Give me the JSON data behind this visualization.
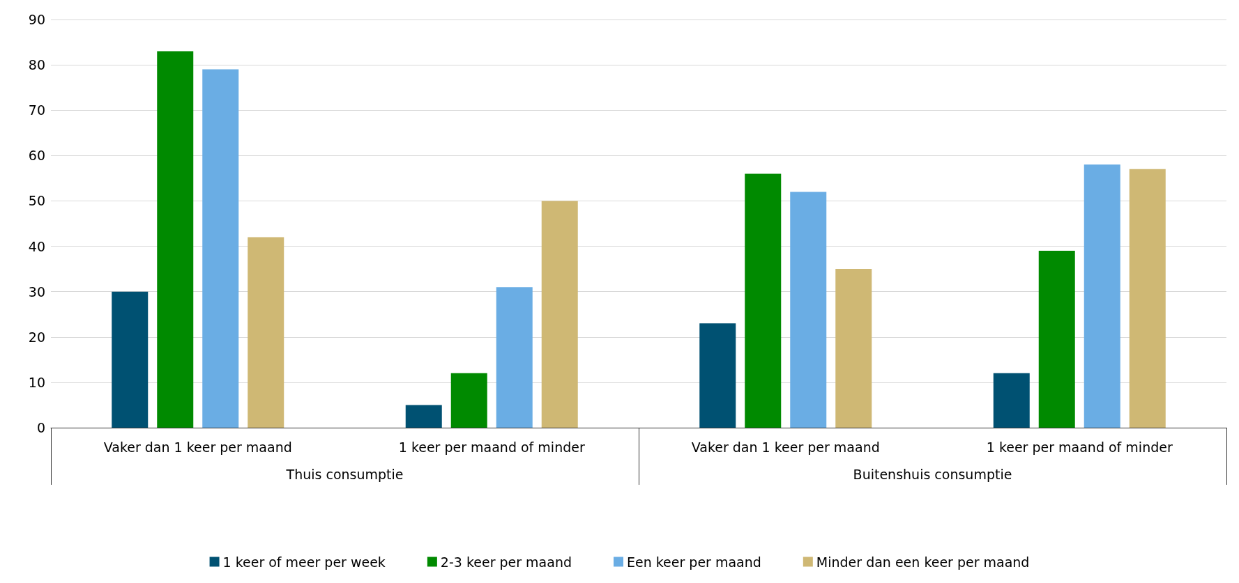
{
  "chart_data": {
    "type": "bar",
    "categories": [
      "Vaker dan 1 keer per maand",
      "1 keer per maand of minder",
      "Vaker dan 1 keer per maand",
      "1 keer per maand of minder"
    ],
    "annotations": [
      "Thuis consumptie",
      "Buitenshuis consumptie"
    ],
    "series": [
      {
        "name": "1 keer of meer per week",
        "color": "#005172",
        "values": [
          30,
          5,
          23,
          12
        ]
      },
      {
        "name": "2-3 keer per maand",
        "color": "#008a00",
        "values": [
          83,
          12,
          56,
          39
        ]
      },
      {
        "name": "Een keer per maand",
        "color": "#6aade4",
        "values": [
          79,
          31,
          52,
          58
        ]
      },
      {
        "name": "Minder dan een keer per maand",
        "color": "#cfb874",
        "values": [
          42,
          50,
          35,
          57
        ]
      }
    ],
    "ylim": [
      0,
      90
    ],
    "yticks": [
      0,
      10,
      20,
      30,
      40,
      50,
      60,
      70,
      80,
      90
    ],
    "grid": "y",
    "legend": "bottom"
  }
}
